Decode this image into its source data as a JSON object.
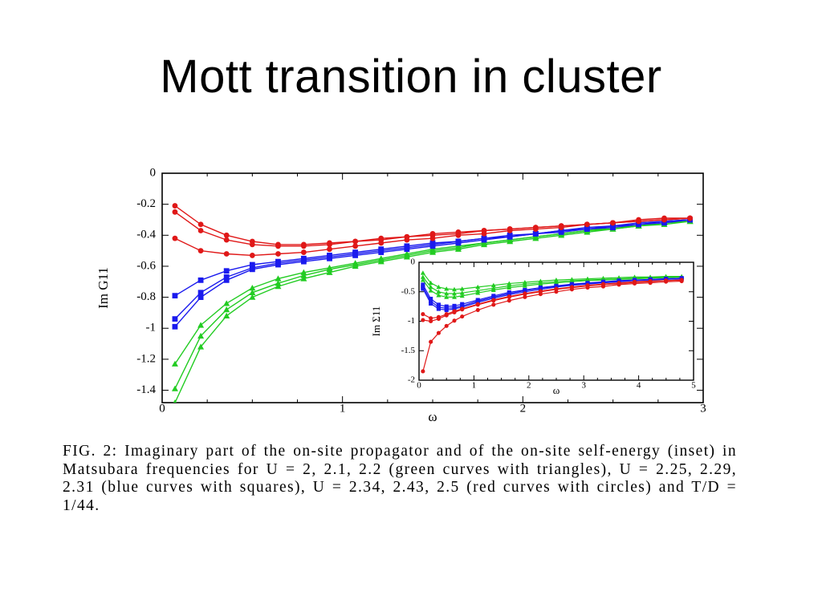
{
  "title": "Mott transition in cluster",
  "caption": "FIG. 2: Imaginary part of the on-site propagator and of the on-site self-energy (inset) in Matsubara frequencies for U = 2, 2.1, 2.2 (green curves with triangles), U = 2.25, 2.29, 2.31 (blue curves with squares), U = 2.34, 2.43, 2.5 (red curves with circles) and T/D = 1/44.",
  "colors": {
    "green": "#22cc22",
    "blue": "#1a1aee",
    "red": "#e01818"
  },
  "chart_data": [
    {
      "type": "line",
      "xlabel": "ω",
      "ylabel": "Im G11",
      "xlim": [
        0,
        3
      ],
      "ylim": [
        -1.48,
        0
      ],
      "xticks": [
        0,
        1,
        2,
        3
      ],
      "yticks": [
        0,
        -0.2,
        -0.4,
        -0.6,
        -0.8,
        -1,
        -1.2,
        -1.4
      ],
      "xtick_labels": [
        "0",
        "1",
        "2",
        "3"
      ],
      "ytick_labels": [
        "0",
        "-0.2",
        "-0.4",
        "-0.6",
        "-0.8",
        "-1",
        "-1.2",
        "-1.4"
      ],
      "x": [
        0.071,
        0.214,
        0.357,
        0.5,
        0.643,
        0.785,
        0.928,
        1.071,
        1.214,
        1.357,
        1.5,
        1.642,
        1.785,
        1.928,
        2.071,
        2.213,
        2.356,
        2.499,
        2.642,
        2.784,
        2.927
      ],
      "series": [
        {
          "group": "green",
          "marker": "triangle",
          "values": [
            -1.48,
            -1.12,
            -0.92,
            -0.8,
            -0.73,
            -0.68,
            -0.64,
            -0.6,
            -0.57,
            -0.54,
            -0.51,
            -0.49,
            -0.46,
            -0.44,
            -0.42,
            -0.4,
            -0.38,
            -0.36,
            -0.34,
            -0.33,
            -0.31
          ]
        },
        {
          "group": "green",
          "marker": "triangle",
          "values": [
            -1.39,
            -1.05,
            -0.88,
            -0.77,
            -0.71,
            -0.66,
            -0.62,
            -0.59,
            -0.56,
            -0.53,
            -0.5,
            -0.48,
            -0.45,
            -0.43,
            -0.41,
            -0.39,
            -0.37,
            -0.36,
            -0.34,
            -0.32,
            -0.31
          ]
        },
        {
          "group": "green",
          "marker": "triangle",
          "values": [
            -1.23,
            -0.98,
            -0.84,
            -0.74,
            -0.68,
            -0.64,
            -0.61,
            -0.58,
            -0.55,
            -0.52,
            -0.49,
            -0.47,
            -0.45,
            -0.43,
            -0.41,
            -0.39,
            -0.37,
            -0.35,
            -0.34,
            -0.32,
            -0.31
          ]
        },
        {
          "group": "blue",
          "marker": "square",
          "values": [
            -0.99,
            -0.8,
            -0.69,
            -0.62,
            -0.59,
            -0.57,
            -0.55,
            -0.53,
            -0.51,
            -0.49,
            -0.47,
            -0.45,
            -0.43,
            -0.41,
            -0.39,
            -0.38,
            -0.36,
            -0.35,
            -0.33,
            -0.32,
            -0.3
          ]
        },
        {
          "group": "blue",
          "marker": "square",
          "values": [
            -0.94,
            -0.77,
            -0.67,
            -0.61,
            -0.58,
            -0.56,
            -0.54,
            -0.52,
            -0.5,
            -0.48,
            -0.46,
            -0.44,
            -0.42,
            -0.41,
            -0.39,
            -0.37,
            -0.36,
            -0.34,
            -0.33,
            -0.31,
            -0.3
          ]
        },
        {
          "group": "blue",
          "marker": "square",
          "values": [
            -0.79,
            -0.69,
            -0.63,
            -0.59,
            -0.57,
            -0.55,
            -0.53,
            -0.51,
            -0.49,
            -0.47,
            -0.45,
            -0.44,
            -0.42,
            -0.4,
            -0.39,
            -0.37,
            -0.35,
            -0.34,
            -0.32,
            -0.31,
            -0.3
          ]
        },
        {
          "group": "red",
          "marker": "circle",
          "values": [
            -0.42,
            -0.5,
            -0.52,
            -0.53,
            -0.52,
            -0.51,
            -0.49,
            -0.47,
            -0.45,
            -0.43,
            -0.42,
            -0.4,
            -0.39,
            -0.37,
            -0.36,
            -0.35,
            -0.33,
            -0.32,
            -0.31,
            -0.3,
            -0.29
          ]
        },
        {
          "group": "red",
          "marker": "circle",
          "values": [
            -0.25,
            -0.37,
            -0.43,
            -0.46,
            -0.47,
            -0.47,
            -0.46,
            -0.44,
            -0.43,
            -0.41,
            -0.4,
            -0.39,
            -0.37,
            -0.36,
            -0.35,
            -0.34,
            -0.33,
            -0.32,
            -0.31,
            -0.3,
            -0.29
          ]
        },
        {
          "group": "red",
          "marker": "circle",
          "values": [
            -0.21,
            -0.33,
            -0.4,
            -0.44,
            -0.46,
            -0.46,
            -0.45,
            -0.44,
            -0.42,
            -0.41,
            -0.39,
            -0.38,
            -0.37,
            -0.36,
            -0.35,
            -0.34,
            -0.33,
            -0.32,
            -0.3,
            -0.29,
            -0.29
          ]
        }
      ]
    },
    {
      "type": "line",
      "inset": true,
      "xlabel": "ω",
      "ylabel": "Im Σ11",
      "xlim": [
        0,
        5
      ],
      "ylim": [
        -2,
        0
      ],
      "xticks": [
        0,
        1,
        2,
        3,
        4,
        5
      ],
      "yticks": [
        0,
        -0.5,
        -1,
        -1.5,
        -2
      ],
      "xtick_labels": [
        "0",
        "1",
        "2",
        "3",
        "4",
        "5"
      ],
      "ytick_labels": [
        "0",
        "-0.5",
        "-1",
        "-1.5",
        "-2"
      ],
      "x": [
        0.071,
        0.214,
        0.357,
        0.5,
        0.643,
        0.785,
        1.071,
        1.357,
        1.642,
        1.928,
        2.213,
        2.499,
        2.784,
        3.07,
        3.355,
        3.641,
        3.926,
        4.212,
        4.497,
        4.783
      ],
      "series": [
        {
          "group": "green",
          "marker": "triangle",
          "values": [
            -0.18,
            -0.35,
            -0.42,
            -0.45,
            -0.46,
            -0.45,
            -0.42,
            -0.39,
            -0.36,
            -0.34,
            -0.32,
            -0.3,
            -0.29,
            -0.28,
            -0.27,
            -0.26,
            -0.25,
            -0.25,
            -0.24,
            -0.24
          ]
        },
        {
          "group": "green",
          "marker": "triangle",
          "values": [
            -0.25,
            -0.42,
            -0.5,
            -0.53,
            -0.53,
            -0.52,
            -0.48,
            -0.44,
            -0.4,
            -0.37,
            -0.35,
            -0.33,
            -0.31,
            -0.3,
            -0.29,
            -0.28,
            -0.27,
            -0.26,
            -0.25,
            -0.25
          ]
        },
        {
          "group": "green",
          "marker": "triangle",
          "values": [
            -0.3,
            -0.48,
            -0.56,
            -0.59,
            -0.59,
            -0.57,
            -0.52,
            -0.47,
            -0.43,
            -0.4,
            -0.37,
            -0.35,
            -0.33,
            -0.31,
            -0.3,
            -0.29,
            -0.28,
            -0.27,
            -0.26,
            -0.25
          ]
        },
        {
          "group": "blue",
          "marker": "square",
          "values": [
            -0.38,
            -0.62,
            -0.72,
            -0.75,
            -0.74,
            -0.71,
            -0.64,
            -0.57,
            -0.51,
            -0.47,
            -0.43,
            -0.4,
            -0.37,
            -0.35,
            -0.33,
            -0.31,
            -0.3,
            -0.29,
            -0.28,
            -0.27
          ]
        },
        {
          "group": "blue",
          "marker": "square",
          "values": [
            -0.42,
            -0.66,
            -0.76,
            -0.78,
            -0.77,
            -0.74,
            -0.66,
            -0.59,
            -0.53,
            -0.48,
            -0.44,
            -0.41,
            -0.38,
            -0.36,
            -0.34,
            -0.32,
            -0.31,
            -0.29,
            -0.28,
            -0.27
          ]
        },
        {
          "group": "blue",
          "marker": "square",
          "values": [
            -0.45,
            -0.7,
            -0.79,
            -0.81,
            -0.79,
            -0.76,
            -0.68,
            -0.61,
            -0.55,
            -0.5,
            -0.46,
            -0.42,
            -0.39,
            -0.37,
            -0.35,
            -0.33,
            -0.31,
            -0.3,
            -0.29,
            -0.28
          ]
        },
        {
          "group": "red",
          "marker": "circle",
          "values": [
            -0.88,
            -0.95,
            -0.93,
            -0.88,
            -0.83,
            -0.79,
            -0.71,
            -0.64,
            -0.58,
            -0.53,
            -0.49,
            -0.45,
            -0.42,
            -0.39,
            -0.37,
            -0.35,
            -0.33,
            -0.32,
            -0.31,
            -0.3
          ]
        },
        {
          "group": "red",
          "marker": "circle",
          "values": [
            -0.98,
            -1.0,
            -0.96,
            -0.9,
            -0.85,
            -0.8,
            -0.72,
            -0.65,
            -0.59,
            -0.54,
            -0.5,
            -0.46,
            -0.43,
            -0.4,
            -0.38,
            -0.36,
            -0.34,
            -0.33,
            -0.31,
            -0.3
          ]
        },
        {
          "group": "red",
          "marker": "circle",
          "values": [
            -1.85,
            -1.35,
            -1.2,
            -1.08,
            -0.99,
            -0.92,
            -0.81,
            -0.72,
            -0.65,
            -0.59,
            -0.54,
            -0.5,
            -0.46,
            -0.43,
            -0.41,
            -0.38,
            -0.36,
            -0.35,
            -0.33,
            -0.32
          ]
        }
      ]
    }
  ]
}
